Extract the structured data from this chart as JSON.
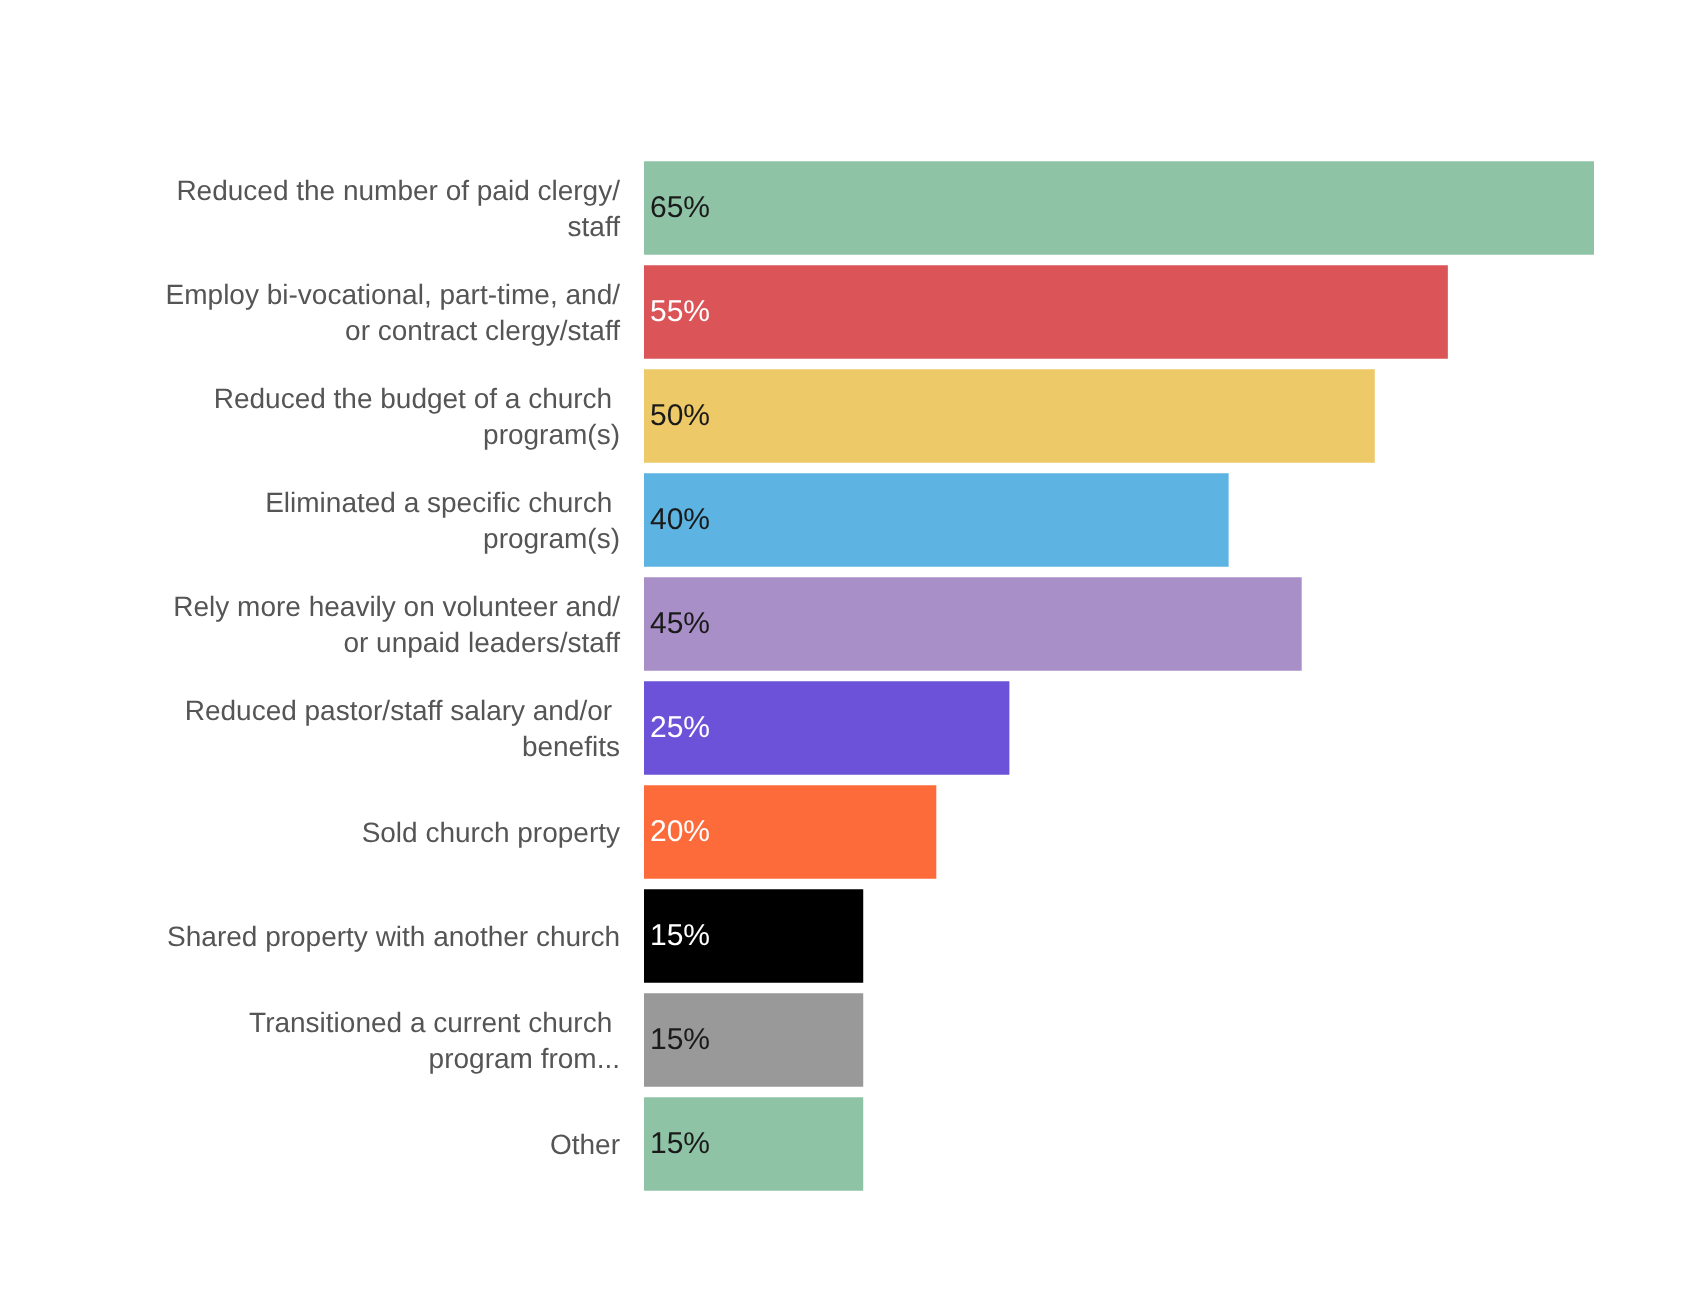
{
  "chart_data": {
    "type": "bar",
    "orientation": "horizontal",
    "categories": [
      "Reduced the number of paid clergy/staff",
      "Employ bi-vocational, part-time, and/or contract clergy/staff",
      "Reduced the budget of a church program(s)",
      "Eliminated a specific church program(s)",
      "Rely more heavily on volunteer and/or unpaid leaders/staff",
      "Reduced pastor/staff salary and/or benefits",
      "Sold church property",
      "Shared property with another church",
      "Transitioned a current church program from...",
      "Other"
    ],
    "values": [
      65,
      55,
      50,
      40,
      45,
      25,
      20,
      15,
      15,
      15
    ],
    "colors": [
      "#8fc3a6",
      "#db5457",
      "#edc968",
      "#5db4e2",
      "#a98fc7",
      "#6b52d9",
      "#fd6b3b",
      "#000000",
      "#999999",
      "#8fc3a6"
    ],
    "value_labels": [
      "65%",
      "55%",
      "50%",
      "40%",
      "45%",
      "25%",
      "20%",
      "15%",
      "15%",
      "15%"
    ],
    "relative": false
  }
}
